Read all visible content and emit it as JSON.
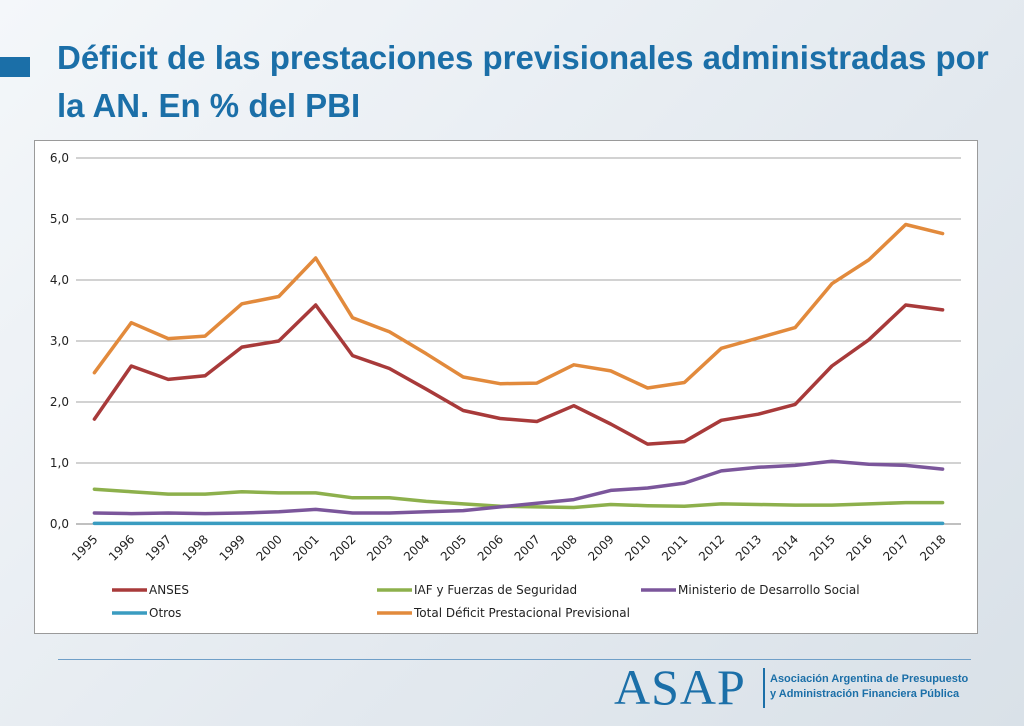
{
  "slide": {
    "title": "Déficit de las prestaciones previsionales administradas por la AN. En % del PBI"
  },
  "logo": {
    "name": "ASAP",
    "subtitle_line1": "Asociación Argentina de Presupuesto",
    "subtitle_line2": "y Administración Financiera Pública"
  },
  "colors": {
    "title": "#1b6fa8",
    "accent": "#1b6fa8",
    "grid": "#a6a6a6"
  },
  "chart_data": {
    "type": "line",
    "title": "",
    "xlabel": "",
    "ylabel": "",
    "ylim": [
      0,
      6
    ],
    "yticks": [
      0,
      1,
      2,
      3,
      4,
      5,
      6
    ],
    "ytick_labels": [
      "0,0",
      "1,0",
      "2,0",
      "3,0",
      "4,0",
      "5,0",
      "6,0"
    ],
    "grid": true,
    "legend_position": "bottom",
    "x": [
      "1995",
      "1996",
      "1997",
      "1998",
      "1999",
      "2000",
      "2001",
      "2002",
      "2003",
      "2004",
      "2005",
      "2006",
      "2007",
      "2008",
      "2009",
      "2010",
      "2011",
      "2012",
      "2013",
      "2014",
      "2015",
      "2016",
      "2017",
      "2018"
    ],
    "series": [
      {
        "name": "ANSES",
        "color": "#a83a3a",
        "values": [
          1.72,
          2.59,
          2.37,
          2.43,
          2.9,
          3.0,
          3.59,
          2.76,
          2.55,
          2.21,
          1.86,
          1.73,
          1.68,
          1.94,
          1.64,
          1.31,
          1.35,
          1.7,
          1.8,
          1.96,
          2.59,
          3.02,
          3.59,
          3.51
        ]
      },
      {
        "name": "IAF y Fuerzas de Seguridad",
        "color": "#8db04c",
        "values": [
          0.57,
          0.53,
          0.49,
          0.49,
          0.53,
          0.51,
          0.51,
          0.43,
          0.43,
          0.37,
          0.33,
          0.29,
          0.28,
          0.27,
          0.32,
          0.3,
          0.29,
          0.33,
          0.32,
          0.31,
          0.31,
          0.33,
          0.35,
          0.35
        ]
      },
      {
        "name": "Ministerio de Desarrollo Social",
        "color": "#7b569b",
        "values": [
          0.18,
          0.17,
          0.18,
          0.17,
          0.18,
          0.2,
          0.24,
          0.18,
          0.18,
          0.2,
          0.22,
          0.28,
          0.34,
          0.4,
          0.55,
          0.59,
          0.67,
          0.87,
          0.93,
          0.96,
          1.03,
          0.98,
          0.96,
          0.9
        ]
      },
      {
        "name": "Otros",
        "color": "#3a9cc0",
        "values": [
          0.01,
          0.01,
          0.01,
          0.01,
          0.01,
          0.01,
          0.01,
          0.01,
          0.01,
          0.01,
          0.01,
          0.01,
          0.01,
          0.01,
          0.01,
          0.01,
          0.01,
          0.01,
          0.01,
          0.01,
          0.01,
          0.01,
          0.01,
          0.01
        ]
      },
      {
        "name": "Total Déficit Prestacional Previsional",
        "color": "#e28a3c",
        "values": [
          2.48,
          3.3,
          3.04,
          3.08,
          3.61,
          3.73,
          4.36,
          3.38,
          3.15,
          2.79,
          2.41,
          2.3,
          2.31,
          2.61,
          2.51,
          2.23,
          2.32,
          2.88,
          3.05,
          3.22,
          3.94,
          4.33,
          4.91,
          4.76
        ]
      }
    ]
  }
}
